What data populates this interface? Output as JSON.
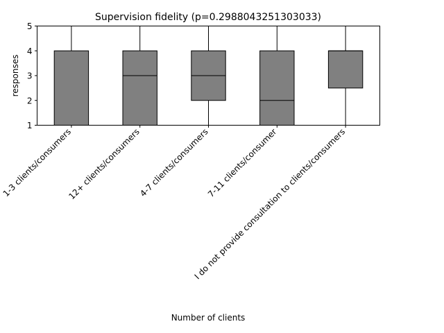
{
  "chart_data": {
    "type": "box",
    "title": "Supervision fidelity (p=0.2988043251303033)",
    "xlabel": "Number of clients",
    "ylabel": "responses",
    "ylim": [
      1,
      5
    ],
    "yticks": [
      "1",
      "2",
      "3",
      "4",
      "5"
    ],
    "grid": false,
    "categories": [
      "1-3 clients/consumers",
      "12+ clients/consumers",
      "4-7 clients/consumers",
      "7-11 clients/consumer",
      "I do not provide consultation to clients/consumers"
    ],
    "boxes": [
      {
        "whislo": 1,
        "q1": 1,
        "med": 1,
        "q3": 4,
        "whishi": 5
      },
      {
        "whislo": 1,
        "q1": 1,
        "med": 3,
        "q3": 4,
        "whishi": 5
      },
      {
        "whislo": 1,
        "q1": 2,
        "med": 3,
        "q3": 4,
        "whishi": 5
      },
      {
        "whislo": 1,
        "q1": 1,
        "med": 2,
        "q3": 4,
        "whishi": 5
      },
      {
        "whislo": 1,
        "q1": 2.5,
        "med": 4,
        "q3": 4,
        "whishi": 5
      }
    ],
    "colors": {
      "box_fill": "#808080",
      "line": "#000000"
    }
  }
}
